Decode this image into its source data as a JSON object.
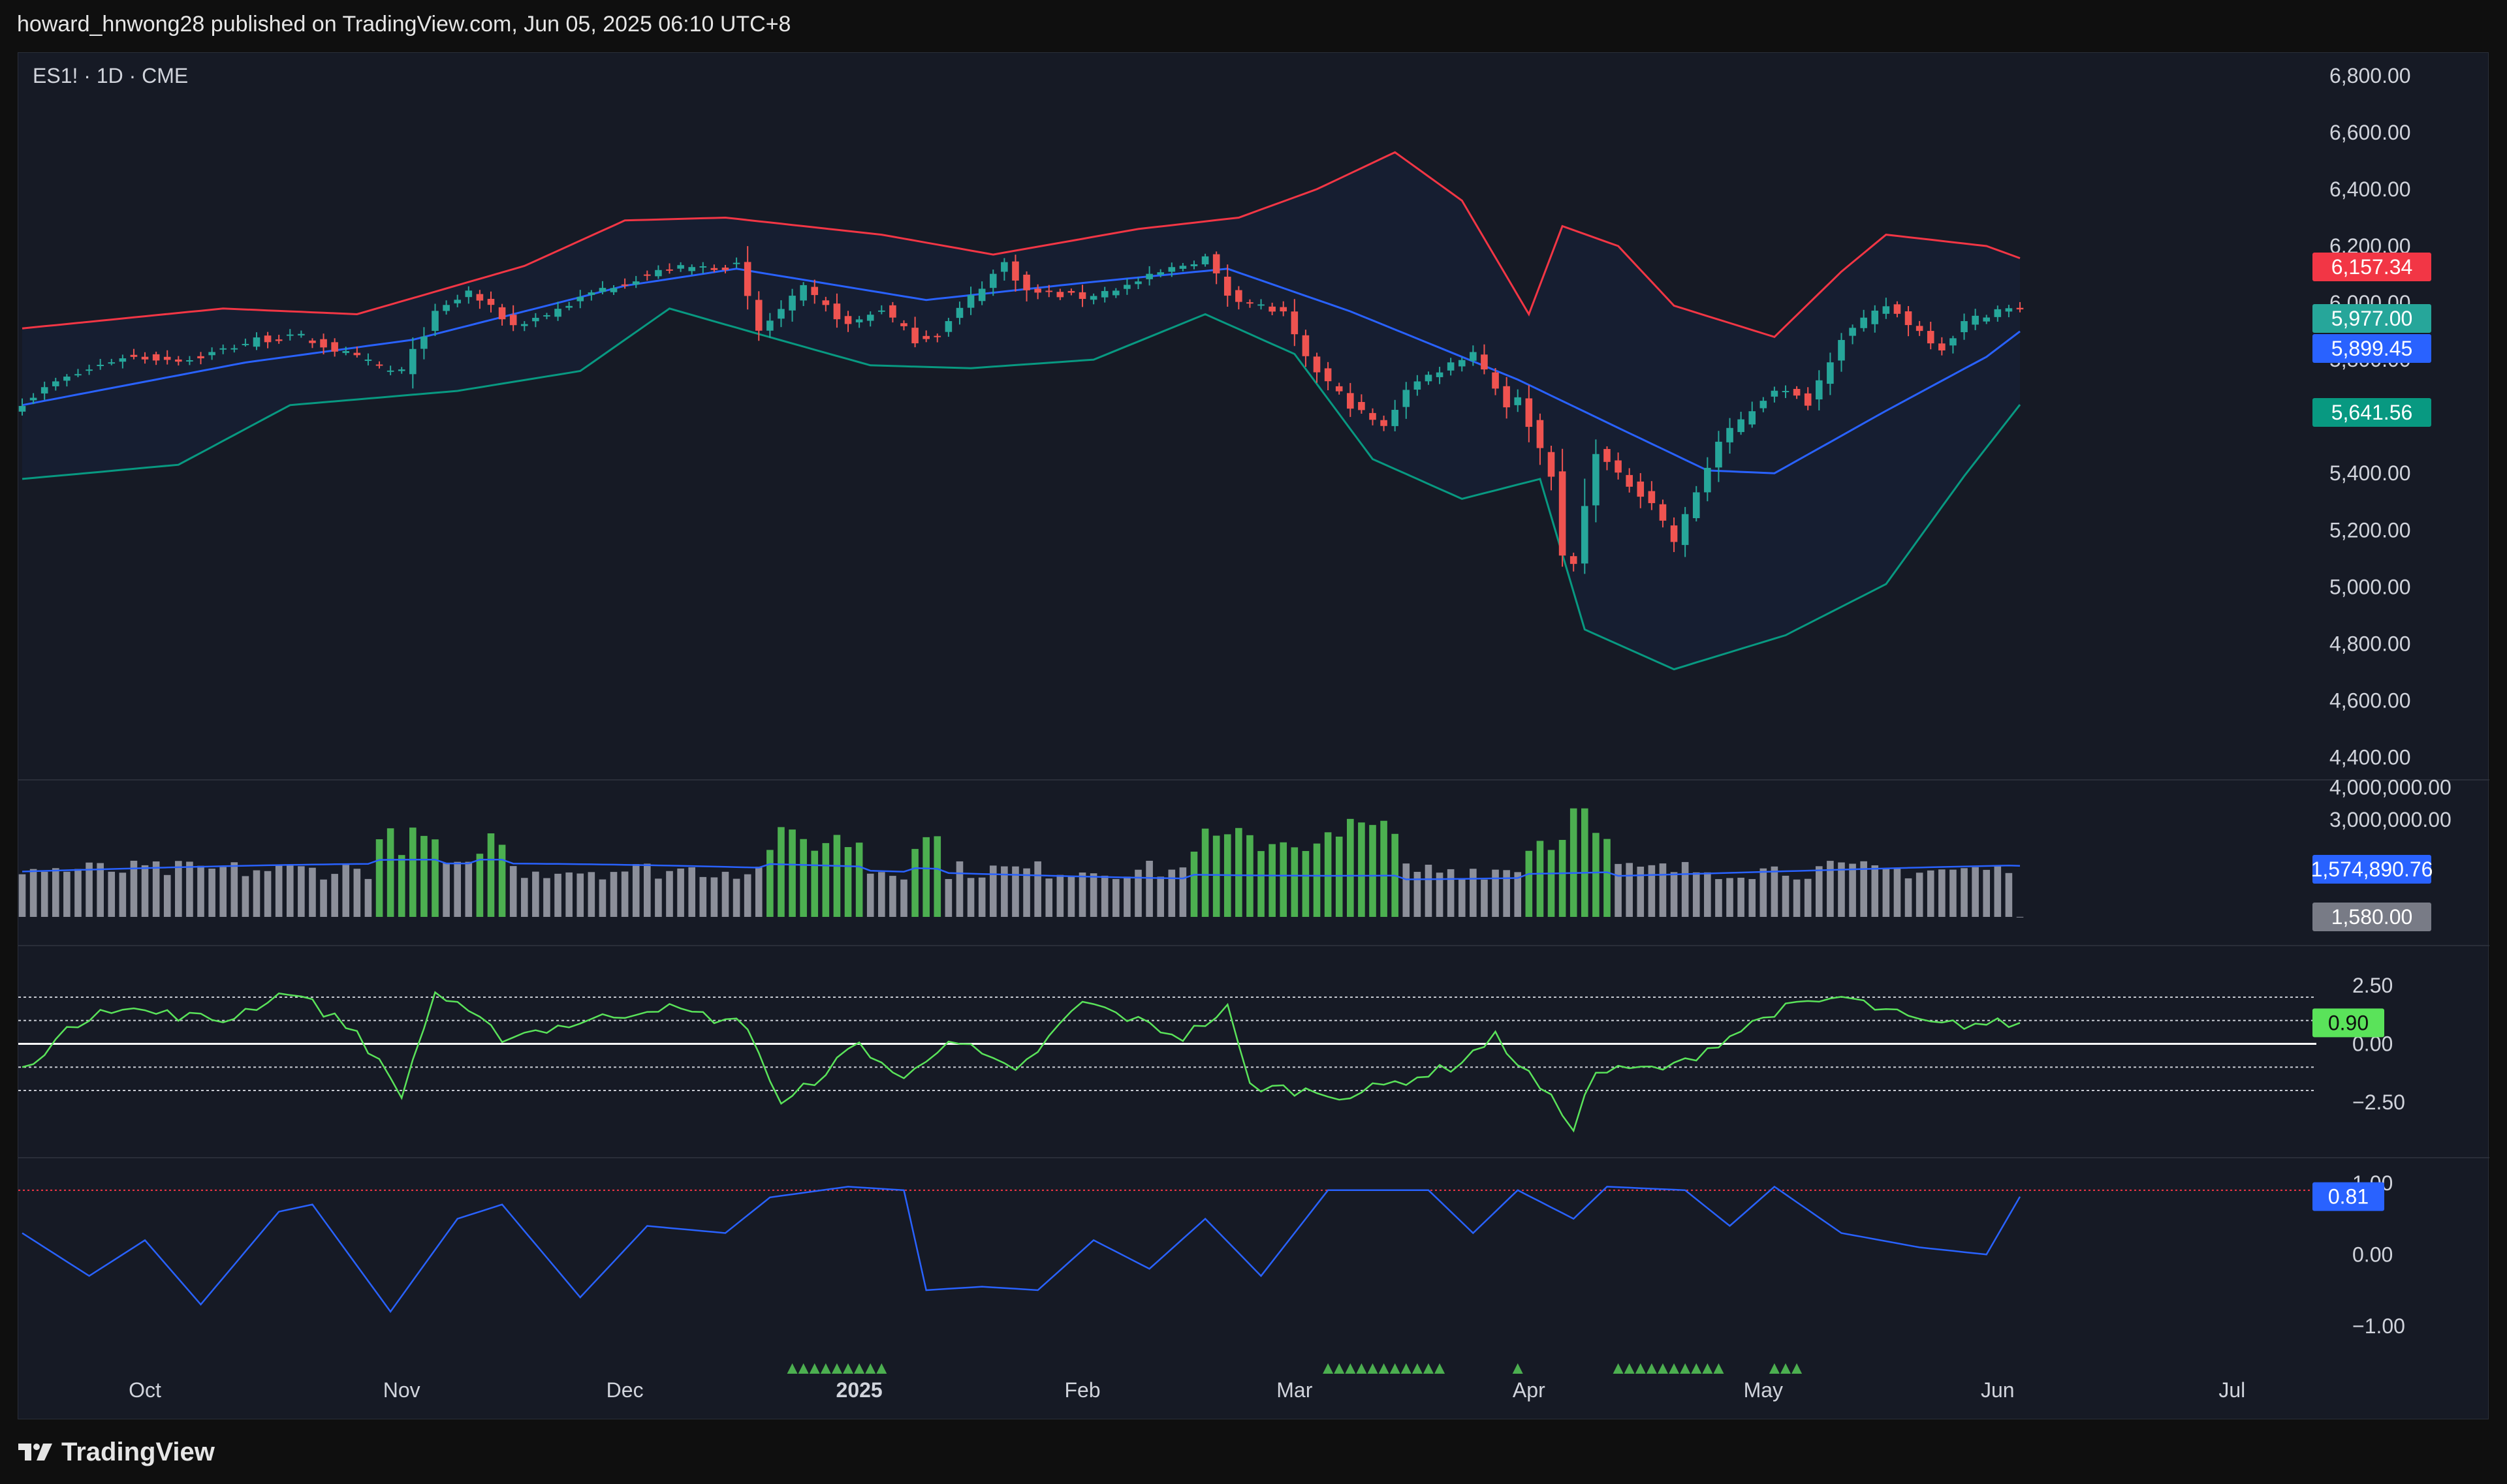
{
  "header": {
    "published_text": "howard_hnwong28 published on TradingView.com, Jun 05, 2025 06:10 UTC+8"
  },
  "symbol_label": "ES1! · 1D · CME",
  "footer": {
    "brand": "TradingView"
  },
  "colors": {
    "bg": "#161a25",
    "up": "#26a69a",
    "down": "#ef5350",
    "bb_upper": "#f23645",
    "bb_basis": "#2962ff",
    "bb_lower": "#089981",
    "vol_green": "#4caf50",
    "vol_gray": "#8c8f9a",
    "osc_green": "#5ae35a",
    "stoch_blue": "#2962ff"
  },
  "chart_data": [
    {
      "type": "candlestick",
      "panel": "price",
      "symbol": "ES1!",
      "interval": "1D",
      "exchange": "CME",
      "x_axis_labels": [
        "Oct",
        "Nov",
        "Dec",
        "2025",
        "Feb",
        "Mar",
        "Apr",
        "May",
        "Jun",
        "Jul"
      ],
      "y_ticks": [
        4400,
        4600,
        4800,
        5000,
        5200,
        5400,
        5600,
        5800,
        6000,
        6200,
        6400,
        6600,
        6800
      ],
      "ylim": [
        4330,
        6880
      ],
      "close_key_points": [
        {
          "date": "2024-09-16",
          "close": 5650
        },
        {
          "date": "2024-09-19",
          "close": 5720
        },
        {
          "date": "2024-09-27",
          "close": 5810
        },
        {
          "date": "2024-10-07",
          "close": 5800
        },
        {
          "date": "2024-10-15",
          "close": 5870
        },
        {
          "date": "2024-10-21",
          "close": 5880
        },
        {
          "date": "2024-10-31",
          "close": 5760
        },
        {
          "date": "2024-11-01",
          "close": 5760
        },
        {
          "date": "2024-11-06",
          "close": 5960
        },
        {
          "date": "2024-11-11",
          "close": 6040
        },
        {
          "date": "2024-11-15",
          "close": 5920
        },
        {
          "date": "2024-11-20",
          "close": 5960
        },
        {
          "date": "2024-11-27",
          "close": 6050
        },
        {
          "date": "2024-12-06",
          "close": 6120
        },
        {
          "date": "2024-12-16",
          "close": 6130
        },
        {
          "date": "2024-12-18",
          "close": 5900
        },
        {
          "date": "2024-12-24",
          "close": 6050
        },
        {
          "date": "2024-12-31",
          "close": 5920
        },
        {
          "date": "2025-01-06",
          "close": 5980
        },
        {
          "date": "2025-01-10",
          "close": 5870
        },
        {
          "date": "2025-01-14",
          "close": 5890
        },
        {
          "date": "2025-01-17",
          "close": 6020
        },
        {
          "date": "2025-01-23",
          "close": 6140
        },
        {
          "date": "2025-01-27",
          "close": 6040
        },
        {
          "date": "2025-02-03",
          "close": 6020
        },
        {
          "date": "2025-02-07",
          "close": 6060
        },
        {
          "date": "2025-02-13",
          "close": 6120
        },
        {
          "date": "2025-02-19",
          "close": 6160
        },
        {
          "date": "2025-02-21",
          "close": 6030
        },
        {
          "date": "2025-02-28",
          "close": 5960
        },
        {
          "date": "2025-03-04",
          "close": 5800
        },
        {
          "date": "2025-03-10",
          "close": 5640
        },
        {
          "date": "2025-03-13",
          "close": 5560
        },
        {
          "date": "2025-03-17",
          "close": 5700
        },
        {
          "date": "2025-03-25",
          "close": 5830
        },
        {
          "date": "2025-03-28",
          "close": 5640
        },
        {
          "date": "2025-03-31",
          "close": 5660
        },
        {
          "date": "2025-04-03",
          "close": 5400
        },
        {
          "date": "2025-04-04",
          "close": 5100
        },
        {
          "date": "2025-04-07",
          "close": 5080
        },
        {
          "date": "2025-04-09",
          "close": 5480
        },
        {
          "date": "2025-04-11",
          "close": 5390
        },
        {
          "date": "2025-04-16",
          "close": 5300
        },
        {
          "date": "2025-04-21",
          "close": 5160
        },
        {
          "date": "2025-04-25",
          "close": 5510
        },
        {
          "date": "2025-05-02",
          "close": 5700
        },
        {
          "date": "2025-05-07",
          "close": 5650
        },
        {
          "date": "2025-05-12",
          "close": 5880
        },
        {
          "date": "2025-05-16",
          "close": 5990
        },
        {
          "date": "2025-05-23",
          "close": 5840
        },
        {
          "date": "2025-05-28",
          "close": 5930
        },
        {
          "date": "2025-06-02",
          "close": 5977
        }
      ],
      "bollinger_bands": {
        "upper_key_points": [
          {
            "date": "2024-09-16",
            "v": 5910
          },
          {
            "date": "2024-10-10",
            "v": 5980
          },
          {
            "date": "2024-10-28",
            "v": 5960
          },
          {
            "date": "2024-11-18",
            "v": 6130
          },
          {
            "date": "2024-12-02",
            "v": 6290
          },
          {
            "date": "2024-12-13",
            "v": 6300
          },
          {
            "date": "2025-01-06",
            "v": 6240
          },
          {
            "date": "2025-01-22",
            "v": 6170
          },
          {
            "date": "2025-02-10",
            "v": 6260
          },
          {
            "date": "2025-02-24",
            "v": 6300
          },
          {
            "date": "2025-03-05",
            "v": 6400
          },
          {
            "date": "2025-03-14",
            "v": 6530
          },
          {
            "date": "2025-03-24",
            "v": 6360
          },
          {
            "date": "2025-04-01",
            "v": 5960
          },
          {
            "date": "2025-04-04",
            "v": 6270
          },
          {
            "date": "2025-04-11",
            "v": 6200
          },
          {
            "date": "2025-04-21",
            "v": 5990
          },
          {
            "date": "2025-05-02",
            "v": 5880
          },
          {
            "date": "2025-05-12",
            "v": 6110
          },
          {
            "date": "2025-05-16",
            "v": 6240
          },
          {
            "date": "2025-05-30",
            "v": 6200
          },
          {
            "date": "2025-06-04",
            "v": 6157.34
          }
        ],
        "basis_key_points": [
          {
            "date": "2024-09-16",
            "v": 5640
          },
          {
            "date": "2024-10-14",
            "v": 5790
          },
          {
            "date": "2024-11-04",
            "v": 5870
          },
          {
            "date": "2024-12-02",
            "v": 6060
          },
          {
            "date": "2024-12-16",
            "v": 6120
          },
          {
            "date": "2025-01-13",
            "v": 6010
          },
          {
            "date": "2025-02-03",
            "v": 6070
          },
          {
            "date": "2025-02-21",
            "v": 6120
          },
          {
            "date": "2025-03-10",
            "v": 5970
          },
          {
            "date": "2025-03-31",
            "v": 5730
          },
          {
            "date": "2025-04-11",
            "v": 5560
          },
          {
            "date": "2025-04-24",
            "v": 5410
          },
          {
            "date": "2025-05-02",
            "v": 5400
          },
          {
            "date": "2025-05-16",
            "v": 5620
          },
          {
            "date": "2025-05-30",
            "v": 5810
          },
          {
            "date": "2025-06-04",
            "v": 5899.45
          }
        ],
        "lower_key_points": [
          {
            "date": "2024-09-16",
            "v": 5380
          },
          {
            "date": "2024-10-04",
            "v": 5430
          },
          {
            "date": "2024-10-18",
            "v": 5640
          },
          {
            "date": "2024-11-08",
            "v": 5690
          },
          {
            "date": "2024-11-25",
            "v": 5760
          },
          {
            "date": "2024-12-06",
            "v": 5980
          },
          {
            "date": "2024-12-18",
            "v": 5890
          },
          {
            "date": "2025-01-03",
            "v": 5780
          },
          {
            "date": "2025-01-17",
            "v": 5770
          },
          {
            "date": "2025-02-04",
            "v": 5800
          },
          {
            "date": "2025-02-19",
            "v": 5960
          },
          {
            "date": "2025-03-03",
            "v": 5820
          },
          {
            "date": "2025-03-12",
            "v": 5450
          },
          {
            "date": "2025-03-24",
            "v": 5310
          },
          {
            "date": "2025-04-02",
            "v": 5380
          },
          {
            "date": "2025-04-08",
            "v": 4850
          },
          {
            "date": "2025-04-21",
            "v": 4710
          },
          {
            "date": "2025-05-05",
            "v": 4830
          },
          {
            "date": "2025-05-16",
            "v": 5010
          },
          {
            "date": "2025-05-28",
            "v": 5390
          },
          {
            "date": "2025-06-04",
            "v": 5641.56
          }
        ]
      },
      "price_labels": [
        {
          "value": "6,157.34",
          "color": "#f23645"
        },
        {
          "value": "5,977.00",
          "color": "#26a69a"
        },
        {
          "value": "5,899.45",
          "color": "#2962ff"
        },
        {
          "value": "5,641.56",
          "color": "#089981"
        }
      ]
    },
    {
      "type": "bar",
      "panel": "volume",
      "y_ticks_visible": [
        4000000,
        3000000
      ],
      "ylim": [
        0,
        4150000
      ],
      "volume_ma_label": "1,574,890.76",
      "last_volume_label": "1,580.00",
      "volume_ma_last": 1574890.76,
      "volume_last": 1580,
      "high_volume_periods": [
        {
          "from": "2024-10-30",
          "to": "2024-11-06"
        },
        {
          "from": "2024-11-12",
          "to": "2024-11-14"
        },
        {
          "from": "2024-12-19",
          "to": "2025-01-02"
        },
        {
          "from": "2025-01-10",
          "to": "2025-01-14"
        },
        {
          "from": "2025-02-18",
          "to": "2025-03-14"
        },
        {
          "from": "2025-04-01",
          "to": "2025-04-10"
        }
      ],
      "peak_volume": 3350000
    },
    {
      "type": "line",
      "panel": "oscillator",
      "y_ticks": [
        "2.50",
        "0.00",
        "−2.50"
      ],
      "ylim": [
        -4.8,
        4.1
      ],
      "reference_lines": [
        2.0,
        1.0,
        0.0,
        -1.0,
        -2.0
      ],
      "last_value_label": "0.90",
      "key_points": [
        {
          "date": "2024-09-16",
          "v": -1.0
        },
        {
          "date": "2024-09-25",
          "v": 1.6
        },
        {
          "date": "2024-10-10",
          "v": 1.0
        },
        {
          "date": "2024-10-18",
          "v": 2.3
        },
        {
          "date": "2024-10-28",
          "v": 0.5
        },
        {
          "date": "2024-11-01",
          "v": -2.2
        },
        {
          "date": "2024-11-06",
          "v": 2.2
        },
        {
          "date": "2024-11-14",
          "v": 0.3
        },
        {
          "date": "2024-11-27",
          "v": 1.1
        },
        {
          "date": "2024-12-05",
          "v": 1.6
        },
        {
          "date": "2024-12-17",
          "v": 0.8
        },
        {
          "date": "2024-12-20",
          "v": -2.7
        },
        {
          "date": "2025-01-02",
          "v": 0.0
        },
        {
          "date": "2025-01-08",
          "v": -1.6
        },
        {
          "date": "2025-01-15",
          "v": 0.3
        },
        {
          "date": "2025-01-24",
          "v": -1.3
        },
        {
          "date": "2025-02-03",
          "v": 1.8
        },
        {
          "date": "2025-02-14",
          "v": 0.3
        },
        {
          "date": "2025-02-21",
          "v": 1.5
        },
        {
          "date": "2025-02-25",
          "v": -1.8
        },
        {
          "date": "2025-03-10",
          "v": -2.2
        },
        {
          "date": "2025-03-21",
          "v": -1.0
        },
        {
          "date": "2025-03-27",
          "v": 0.3
        },
        {
          "date": "2025-04-07",
          "v": -3.5
        },
        {
          "date": "2025-04-09",
          "v": -1.2
        },
        {
          "date": "2025-04-21",
          "v": -1.0
        },
        {
          "date": "2025-05-02",
          "v": 1.4
        },
        {
          "date": "2025-05-12",
          "v": 2.0
        },
        {
          "date": "2025-05-22",
          "v": 0.8
        },
        {
          "date": "2025-06-04",
          "v": 0.9
        }
      ]
    },
    {
      "type": "line",
      "panel": "stochastic",
      "y_ticks": [
        "1.00",
        "0.00",
        "−1.00"
      ],
      "ylim": [
        -1.45,
        1.2
      ],
      "upper_reference_line": 0.9,
      "last_value_label": "0.81",
      "key_points": [
        {
          "date": "2024-09-16",
          "v": 0.3
        },
        {
          "date": "2024-09-24",
          "v": -0.3
        },
        {
          "date": "2024-10-01",
          "v": 0.2
        },
        {
          "date": "2024-10-08",
          "v": -0.7
        },
        {
          "date": "2024-10-17",
          "v": 0.6
        },
        {
          "date": "2024-10-22",
          "v": 0.7
        },
        {
          "date": "2024-10-31",
          "v": -0.8
        },
        {
          "date": "2024-11-08",
          "v": 0.5
        },
        {
          "date": "2024-11-14",
          "v": 0.7
        },
        {
          "date": "2024-11-25",
          "v": -0.6
        },
        {
          "date": "2024-12-04",
          "v": 0.4
        },
        {
          "date": "2024-12-13",
          "v": 0.3
        },
        {
          "date": "2024-12-19",
          "v": 0.8
        },
        {
          "date": "2024-12-31",
          "v": 0.95
        },
        {
          "date": "2025-01-08",
          "v": 0.9
        },
        {
          "date": "2025-01-13",
          "v": -0.5
        },
        {
          "date": "2025-01-21",
          "v": -0.45
        },
        {
          "date": "2025-01-28",
          "v": -0.5
        },
        {
          "date": "2025-02-04",
          "v": 0.2
        },
        {
          "date": "2025-02-11",
          "v": -0.2
        },
        {
          "date": "2025-02-19",
          "v": 0.5
        },
        {
          "date": "2025-02-26",
          "v": -0.3
        },
        {
          "date": "2025-03-06",
          "v": 0.9
        },
        {
          "date": "2025-03-19",
          "v": 0.9
        },
        {
          "date": "2025-03-25",
          "v": 0.3
        },
        {
          "date": "2025-03-31",
          "v": 0.9
        },
        {
          "date": "2025-04-07",
          "v": 0.5
        },
        {
          "date": "2025-04-10",
          "v": 0.95
        },
        {
          "date": "2025-04-22",
          "v": 0.9
        },
        {
          "date": "2025-04-28",
          "v": 0.4
        },
        {
          "date": "2025-05-02",
          "v": 0.95
        },
        {
          "date": "2025-05-12",
          "v": 0.3
        },
        {
          "date": "2025-05-21",
          "v": 0.1
        },
        {
          "date": "2025-05-30",
          "v": 0.0
        },
        {
          "date": "2025-06-04",
          "v": 0.81
        }
      ],
      "signal_triangle_dates": [
        "2024-12-23",
        "2024-12-24",
        "2024-12-26",
        "2024-12-27",
        "2024-12-30",
        "2024-12-31",
        "2025-01-02",
        "2025-01-03",
        "2025-01-06",
        "2025-03-06",
        "2025-03-07",
        "2025-03-10",
        "2025-03-11",
        "2025-03-12",
        "2025-03-13",
        "2025-03-14",
        "2025-03-17",
        "2025-03-18",
        "2025-03-19",
        "2025-03-20",
        "2025-03-31",
        "2025-04-11",
        "2025-04-14",
        "2025-04-15",
        "2025-04-16",
        "2025-04-17",
        "2025-04-21",
        "2025-04-22",
        "2025-04-23",
        "2025-04-24",
        "2025-04-25",
        "2025-05-02",
        "2025-05-05",
        "2025-05-06"
      ]
    }
  ]
}
